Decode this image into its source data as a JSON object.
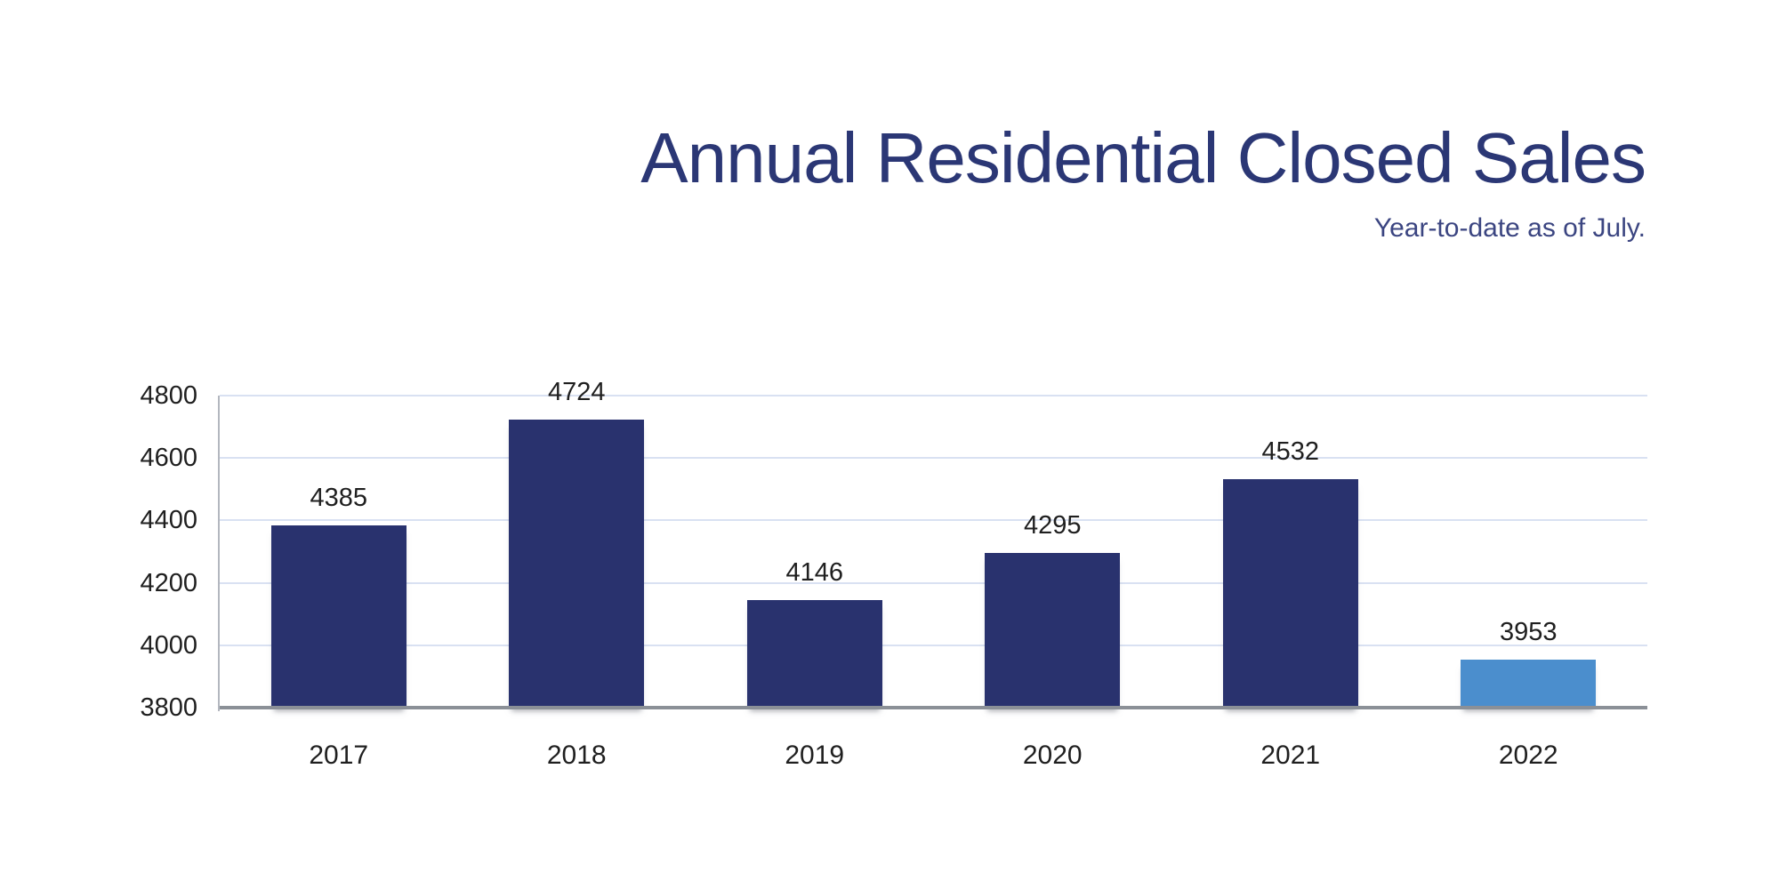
{
  "page": {
    "title": "Annual Residential Closed Sales",
    "subtitle": "Year-to-date as of July."
  },
  "colors": {
    "title_text": "#2B3775",
    "subtitle_text": "#3B4581",
    "bar_navy": "#29326E",
    "bar_highlight_blue": "#4B8ECD",
    "gridline": "#D9E1F2",
    "baseline": "#8B9097",
    "y_axis_line": "#B3B7BF",
    "tick_text": "#1F1F1F",
    "background": "#FFFFFF"
  },
  "chart_data": {
    "type": "bar",
    "title": "Annual Residential Closed Sales",
    "subtitle": "Year-to-date as of July.",
    "categories": [
      "2017",
      "2018",
      "2019",
      "2020",
      "2021",
      "2022"
    ],
    "values": [
      4385,
      4724,
      4146,
      4295,
      4532,
      3953
    ],
    "data_labels": [
      "4385",
      "4724",
      "4146",
      "4295",
      "4532",
      "3953"
    ],
    "bar_colors": [
      "#29326E",
      "#29326E",
      "#29326E",
      "#29326E",
      "#29326E",
      "#4B8ECD"
    ],
    "xlabel": "",
    "ylabel": "",
    "ylim": [
      3800,
      4800
    ],
    "yticks": [
      4800,
      4600,
      4400,
      4200,
      4000,
      3800
    ],
    "grid": "horizontal",
    "legend": "none"
  }
}
